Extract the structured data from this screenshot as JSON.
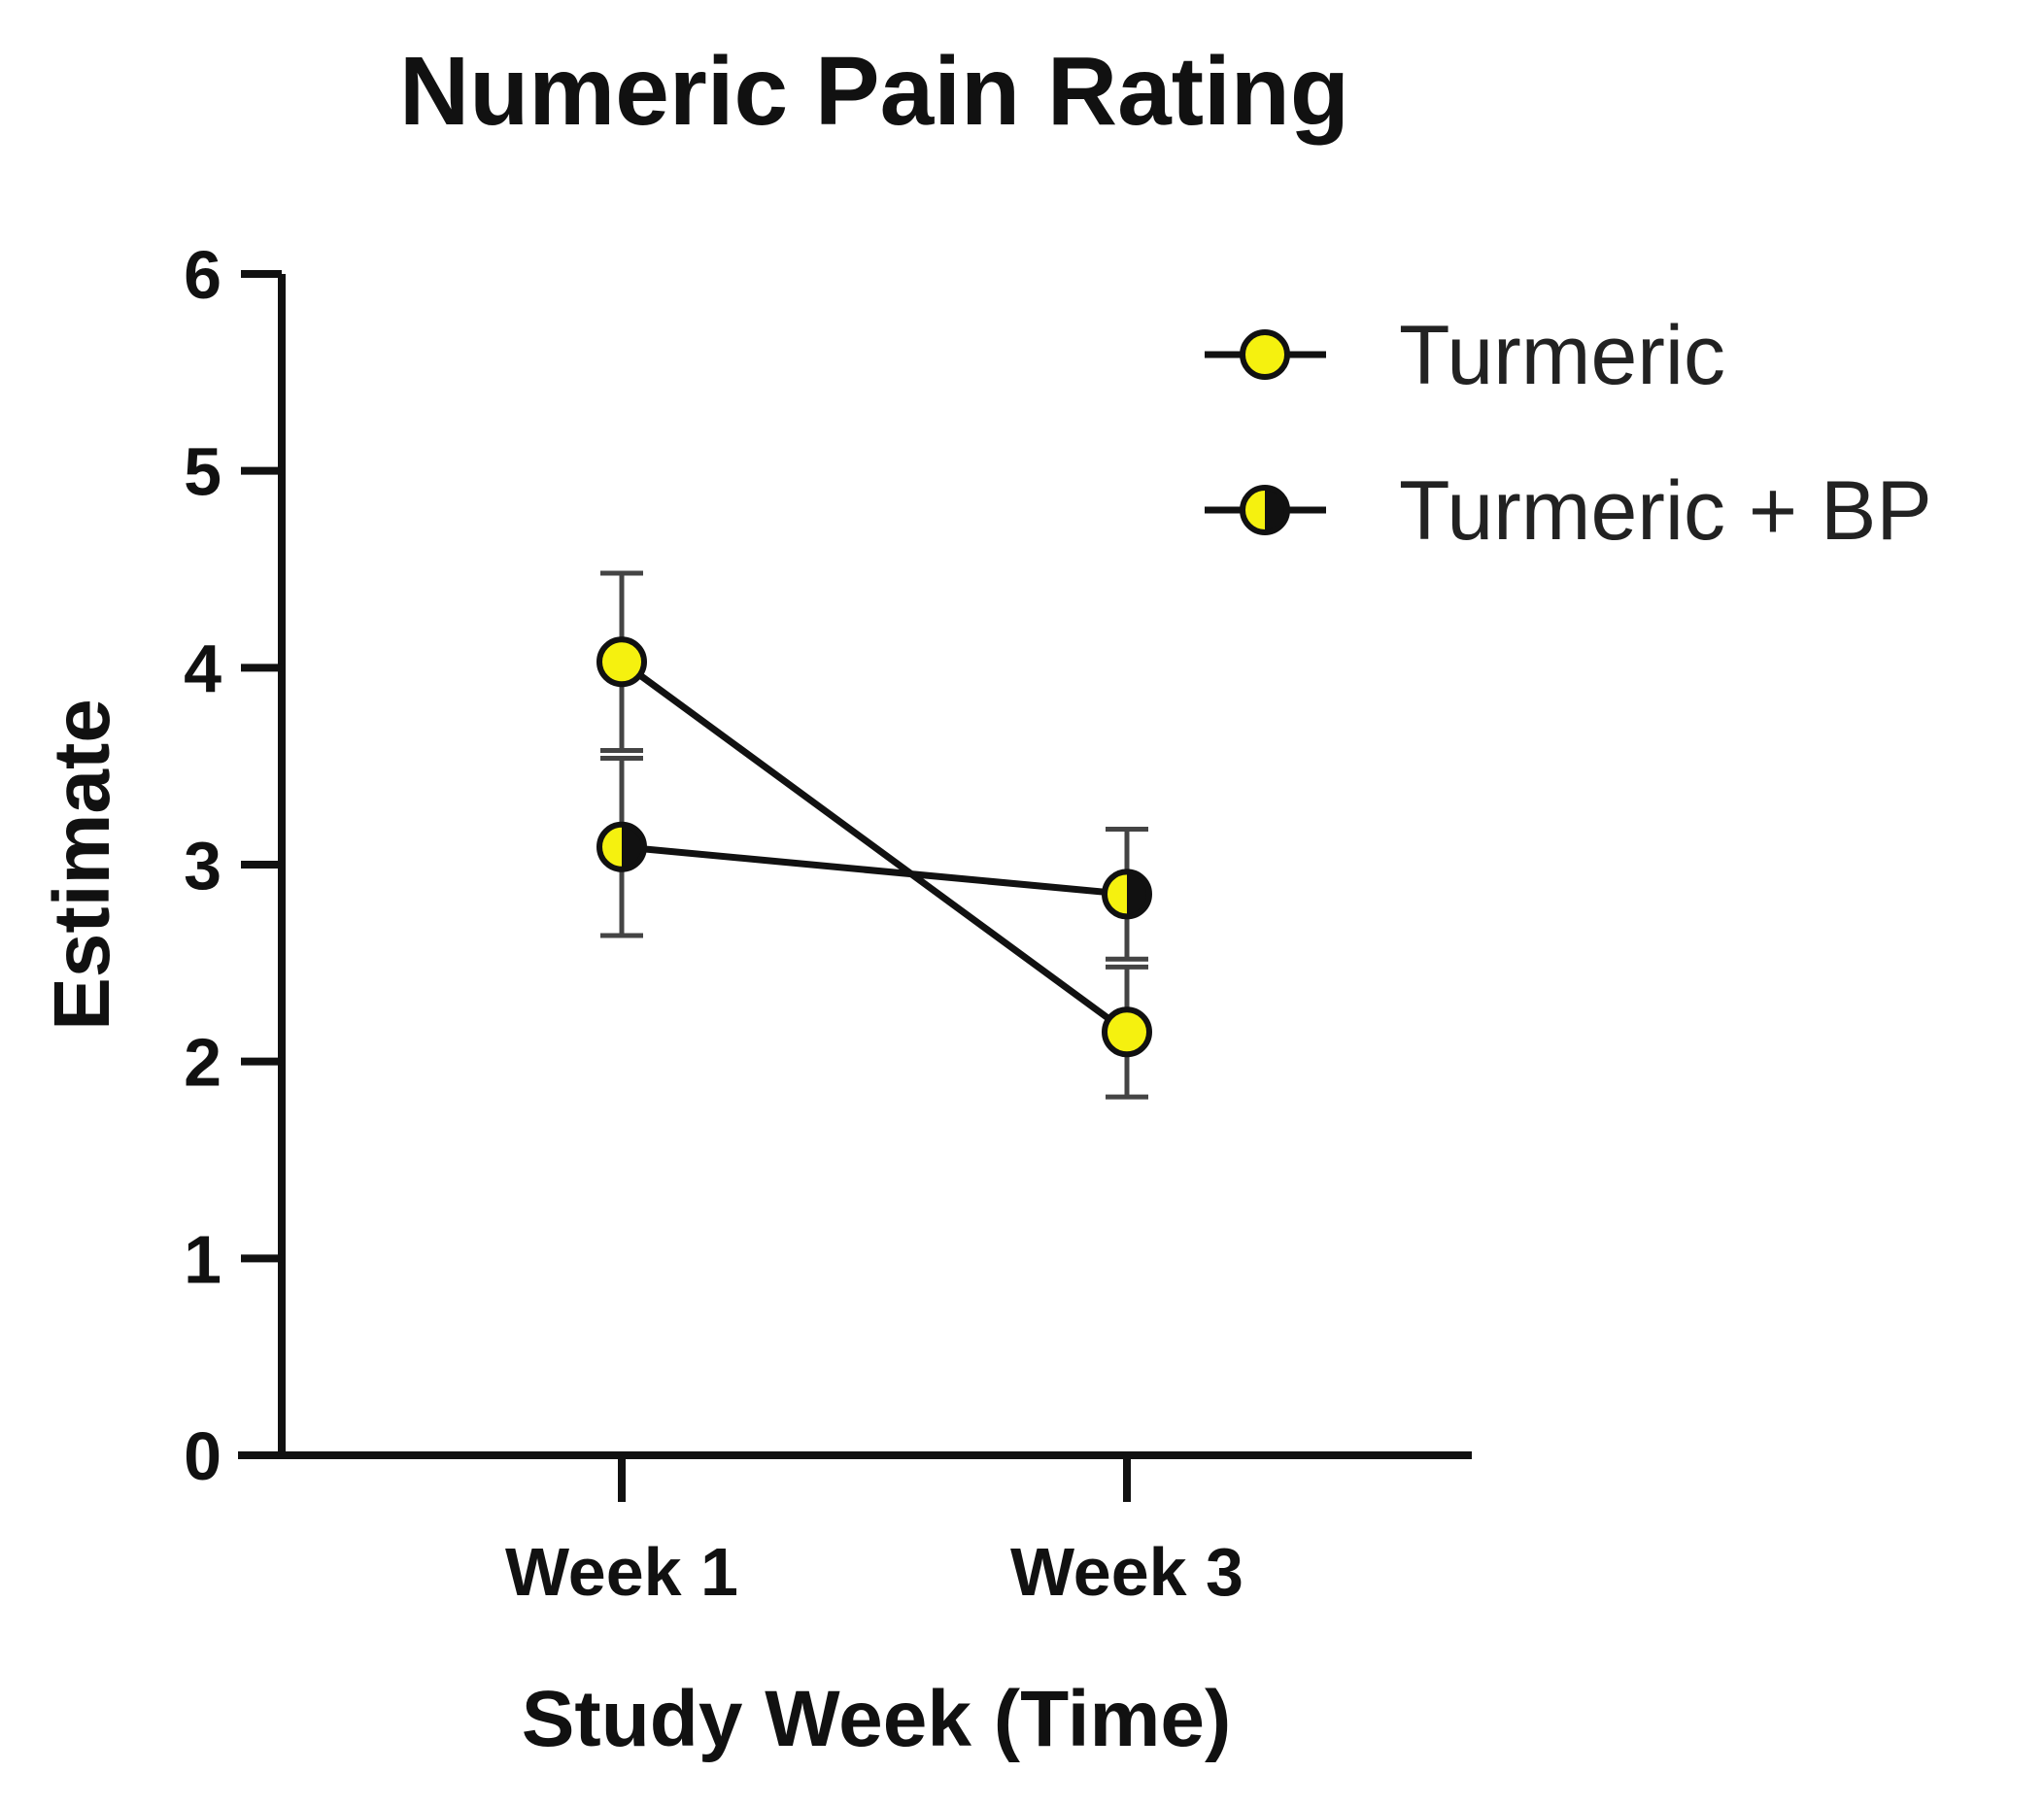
{
  "chart_data": {
    "type": "line",
    "title": "Numeric Pain Rating",
    "xlabel": "Study Week (Time)",
    "ylabel": "Estimate",
    "categories": [
      "Week 1",
      "Week 3"
    ],
    "ylim": [
      0,
      6
    ],
    "yticks": [
      "0",
      "1",
      "2",
      "3",
      "4",
      "5",
      "6"
    ],
    "grid": false,
    "legend_position": "top-right",
    "series": [
      {
        "name": "Turmeric",
        "values": [
          4.03,
          2.15
        ],
        "error": [
          0.45,
          0.33
        ],
        "marker": "filled-circle",
        "color": "#f5f10f",
        "line_color": "#111111"
      },
      {
        "name": "Turmeric + BP",
        "values": [
          3.09,
          2.85
        ],
        "error": [
          0.45,
          0.33
        ],
        "marker": "half-filled-circle",
        "color": "#f5f10f",
        "line_color": "#111111"
      }
    ]
  }
}
